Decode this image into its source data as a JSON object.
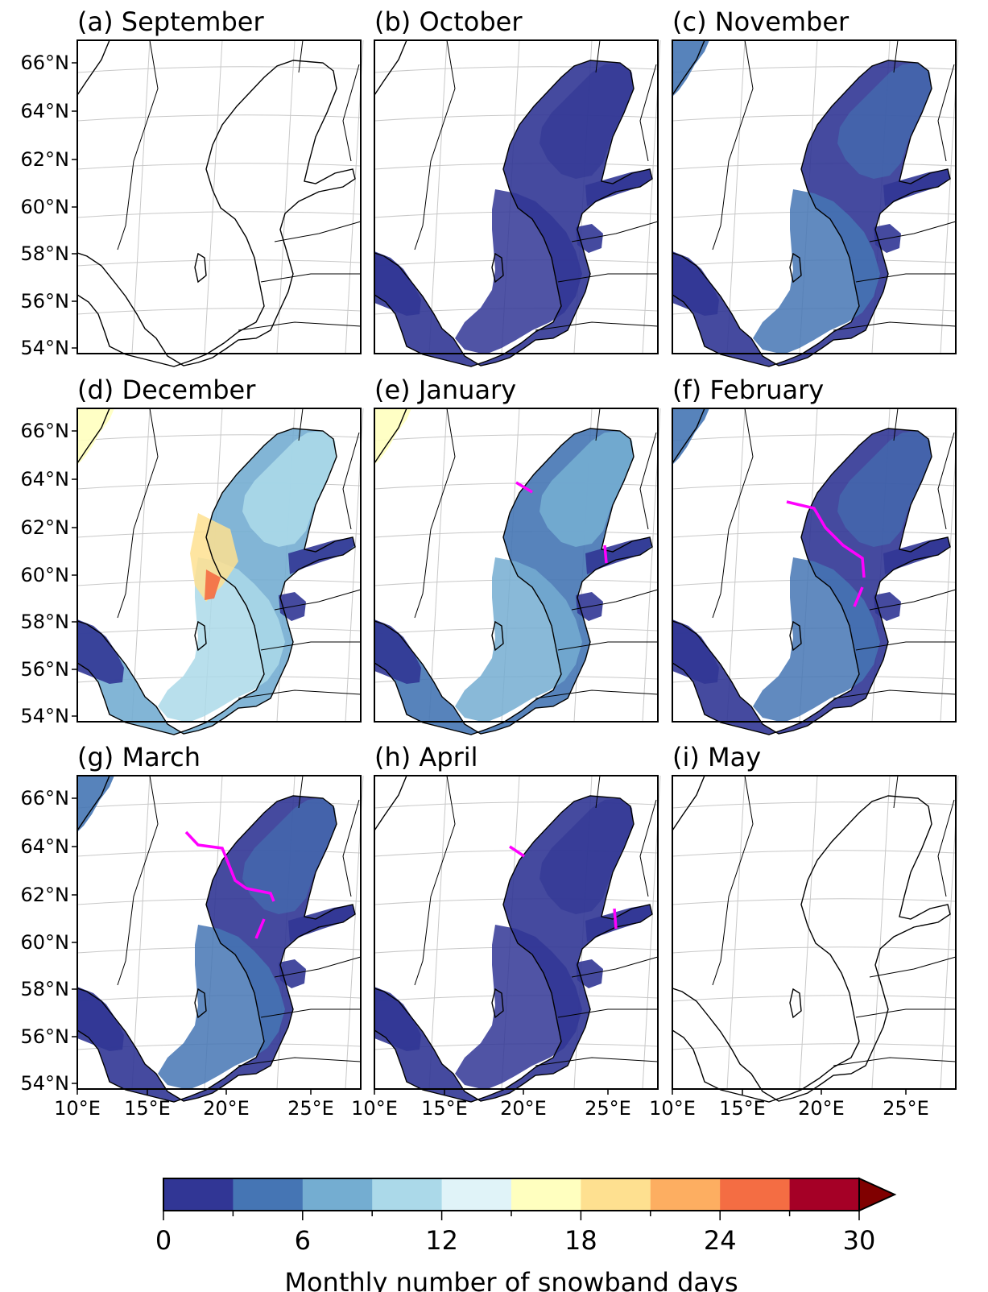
{
  "figure": {
    "panels": [
      {
        "label": "(a) September",
        "month": "September"
      },
      {
        "label": "(b) October",
        "month": "October"
      },
      {
        "label": "(c) November",
        "month": "November"
      },
      {
        "label": "(d) December",
        "month": "December"
      },
      {
        "label": "(e) January",
        "month": "January"
      },
      {
        "label": "(f) February",
        "month": "February"
      },
      {
        "label": "(g) March",
        "month": "March"
      },
      {
        "label": "(h) April",
        "month": "April"
      },
      {
        "label": "(i) May",
        "month": "May"
      }
    ],
    "lat_tick_labels": [
      "66°N",
      "64°N",
      "62°N",
      "60°N",
      "58°N",
      "56°N",
      "54°N"
    ],
    "lon_tick_labels": [
      "10°E",
      "15°E",
      "20°E",
      "25°E"
    ],
    "colorbar": {
      "label": "Monthly number of snowband days",
      "tick_labels": [
        "0",
        "6",
        "12",
        "18",
        "24",
        "30"
      ],
      "range": [
        0,
        30
      ],
      "step": 3,
      "extend": "max",
      "colors": [
        "#313695",
        "#4575b4",
        "#74add1",
        "#abd9e9",
        "#e0f3f8",
        "#ffffbf",
        "#fee090",
        "#fdae61",
        "#f46d43",
        "#a50026"
      ],
      "over_color": "#800000"
    },
    "colors": {
      "coastline": "#000000",
      "gridline": "#c8c8c8",
      "sea_ice_edge": "#ff00ff"
    },
    "panel_level": [
      0,
      1,
      2,
      4,
      3,
      2,
      2,
      1,
      0
    ]
  }
}
